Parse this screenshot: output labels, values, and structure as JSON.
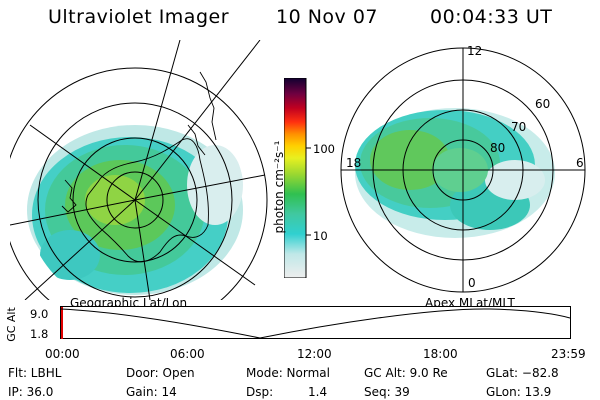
{
  "header": {
    "title": "Ultraviolet Imager",
    "date": "10 Nov 07",
    "time": "00:04:33 UT"
  },
  "left_map": {
    "caption": "Geographic Lat/Lon"
  },
  "right_map": {
    "caption": "Apex  MLat/MLT",
    "mlt_labels": {
      "top": "12",
      "left": "18",
      "right": "6",
      "bottom": "0"
    },
    "lat_labels": [
      "60",
      "70",
      "80"
    ]
  },
  "colorbar": {
    "label": "photon cm⁻²s⁻¹",
    "ticks": [
      "100",
      "10"
    ],
    "colors": [
      "#e6e6e6",
      "#30d0d0",
      "#40c8a0",
      "#30c050",
      "#9cd830",
      "#ffff00",
      "#ffb000",
      "#ff4010",
      "#c00020",
      "#800040",
      "#200040"
    ]
  },
  "altitude_plot": {
    "ylabel": "GC Alt",
    "ymax_label": "9.0",
    "ymin_label": "1.8",
    "x_ticks": [
      "00:00",
      "06:00",
      "12:00",
      "18:00",
      "23:59"
    ],
    "marker_color": "#e00000"
  },
  "info": {
    "row1": {
      "flt": "Flt: LBHL",
      "door": "Door: Open",
      "mode": "Mode: Normal",
      "gcalt": "GC Alt: 9.0 Re",
      "glat": "GLat: −82.8"
    },
    "row2": {
      "ip": "IP: 36.0",
      "gain": "Gain: 14",
      "dsp_label": "Dsp:",
      "dsp_value": "1.4",
      "seq": "Seq: 39",
      "glon": "GLon:  13.9"
    }
  }
}
